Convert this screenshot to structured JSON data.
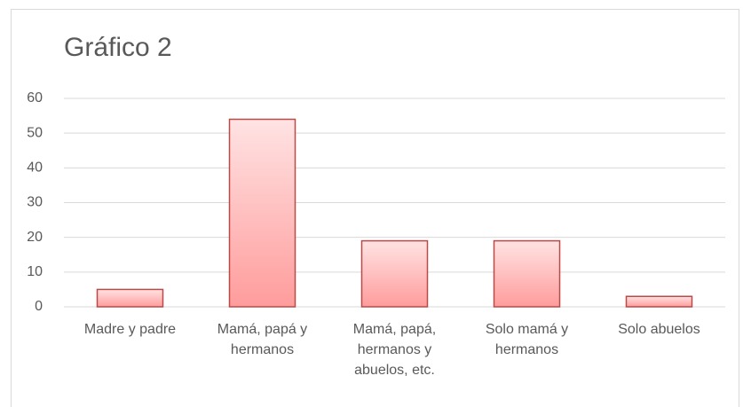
{
  "chart_data": {
    "type": "bar",
    "title": "Gráfico 2",
    "categories": [
      "Madre y padre",
      "Mamá, papá y hermanos",
      "Mamá, papá, hermanos y abuelos, etc.",
      "Solo mamá y hermanos",
      "Solo abuelos"
    ],
    "values": [
      5,
      54,
      19,
      19,
      3
    ],
    "color": "#ff9c9c",
    "edge_color": "#b94a48",
    "ylim": [
      0,
      60
    ],
    "yticks": [
      0,
      10,
      20,
      30,
      40,
      50,
      60
    ],
    "grid": true
  }
}
